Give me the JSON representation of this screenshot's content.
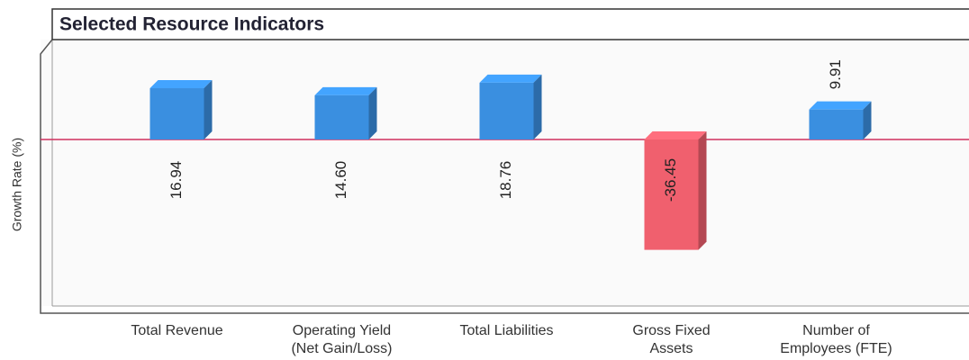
{
  "chart_data": {
    "type": "bar",
    "title": "Selected Resource Indicators",
    "y_label": "Growth Rate (%)",
    "categories": [
      [
        "Total Revenue"
      ],
      [
        "Operating Yield",
        "(Net Gain/Loss)"
      ],
      [
        "Total Liabilities"
      ],
      [
        "Gross Fixed",
        "Assets"
      ],
      [
        "Number of",
        "Employees (FTE)"
      ]
    ],
    "values": [
      16.94,
      14.6,
      18.76,
      -36.45,
      9.91
    ],
    "value_labels": [
      "16.94",
      "14.60",
      "18.76",
      "-36.45",
      "9.91"
    ],
    "colors": {
      "positive": "#3a8fe0",
      "negative": "#f0606e",
      "zero_line": "#d0305e"
    },
    "ylim": [
      -55,
      33
    ]
  }
}
